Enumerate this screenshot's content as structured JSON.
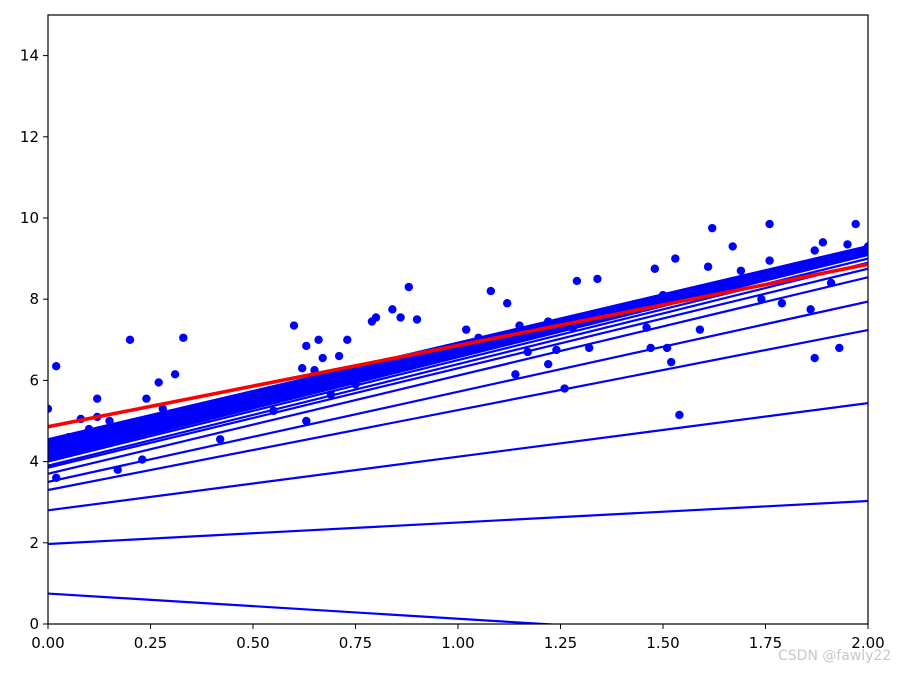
{
  "chart_data": {
    "type": "scatter",
    "xlim": [
      0,
      2
    ],
    "ylim": [
      0,
      15
    ],
    "xticks": [
      0,
      0.25,
      0.5,
      0.75,
      1.0,
      1.25,
      1.5,
      1.75,
      2.0
    ],
    "xtick_labels": [
      "0.00",
      "0.25",
      "0.50",
      "0.75",
      "1.00",
      "1.25",
      "1.50",
      "1.75",
      "2.00"
    ],
    "yticks": [
      0,
      2,
      4,
      6,
      8,
      10,
      12,
      14
    ],
    "ytick_labels": [
      "0",
      "2",
      "4",
      "6",
      "8",
      "10",
      "12",
      "14"
    ],
    "grid": false,
    "colors": {
      "points": "#0000ff",
      "lines": "#0000ff",
      "final_line": "#ff0000"
    },
    "points": [
      [
        0.0,
        5.3
      ],
      [
        0.02,
        6.35
      ],
      [
        0.02,
        3.6
      ],
      [
        0.05,
        4.6
      ],
      [
        0.07,
        4.3
      ],
      [
        0.08,
        5.05
      ],
      [
        0.1,
        4.8
      ],
      [
        0.12,
        5.55
      ],
      [
        0.12,
        5.1
      ],
      [
        0.15,
        5.0
      ],
      [
        0.17,
        3.8
      ],
      [
        0.18,
        4.9
      ],
      [
        0.2,
        7.0
      ],
      [
        0.22,
        4.7
      ],
      [
        0.23,
        4.05
      ],
      [
        0.24,
        5.55
      ],
      [
        0.27,
        5.95
      ],
      [
        0.28,
        5.3
      ],
      [
        0.31,
        6.15
      ],
      [
        0.33,
        7.05
      ],
      [
        0.42,
        4.55
      ],
      [
        0.45,
        5.35
      ],
      [
        0.55,
        5.25
      ],
      [
        0.6,
        7.35
      ],
      [
        0.62,
        6.3
      ],
      [
        0.63,
        6.85
      ],
      [
        0.63,
        5.0
      ],
      [
        0.65,
        6.25
      ],
      [
        0.66,
        7.0
      ],
      [
        0.67,
        6.55
      ],
      [
        0.69,
        5.65
      ],
      [
        0.71,
        6.6
      ],
      [
        0.73,
        7.0
      ],
      [
        0.75,
        5.9
      ],
      [
        0.79,
        7.45
      ],
      [
        0.8,
        7.55
      ],
      [
        0.84,
        7.75
      ],
      [
        0.86,
        7.55
      ],
      [
        0.88,
        8.3
      ],
      [
        0.9,
        7.5
      ],
      [
        1.02,
        7.25
      ],
      [
        1.05,
        7.05
      ],
      [
        1.08,
        8.2
      ],
      [
        1.12,
        7.9
      ],
      [
        1.14,
        6.15
      ],
      [
        1.15,
        7.35
      ],
      [
        1.17,
        6.7
      ],
      [
        1.22,
        7.45
      ],
      [
        1.22,
        6.4
      ],
      [
        1.24,
        6.75
      ],
      [
        1.26,
        5.8
      ],
      [
        1.28,
        7.3
      ],
      [
        1.29,
        8.45
      ],
      [
        1.32,
        6.8
      ],
      [
        1.34,
        8.5
      ],
      [
        1.38,
        7.6
      ],
      [
        1.46,
        7.3
      ],
      [
        1.47,
        6.8
      ],
      [
        1.48,
        8.75
      ],
      [
        1.5,
        8.1
      ],
      [
        1.51,
        6.8
      ],
      [
        1.52,
        6.45
      ],
      [
        1.53,
        9.0
      ],
      [
        1.54,
        5.15
      ],
      [
        1.59,
        7.25
      ],
      [
        1.61,
        8.8
      ],
      [
        1.62,
        9.75
      ],
      [
        1.67,
        9.3
      ],
      [
        1.69,
        8.7
      ],
      [
        1.74,
        8.0
      ],
      [
        1.76,
        9.85
      ],
      [
        1.76,
        8.95
      ],
      [
        1.79,
        7.9
      ],
      [
        1.86,
        7.75
      ],
      [
        1.87,
        9.2
      ],
      [
        1.87,
        6.55
      ],
      [
        1.89,
        9.4
      ],
      [
        1.91,
        8.4
      ],
      [
        1.93,
        6.8
      ],
      [
        1.95,
        9.35
      ],
      [
        1.97,
        9.85
      ],
      [
        2.0,
        9.3
      ]
    ],
    "lines": [
      {
        "intercept": 0.75,
        "slope": -0.62
      },
      {
        "intercept": 1.97,
        "slope": 0.53
      },
      {
        "intercept": 2.8,
        "slope": 1.32
      },
      {
        "intercept": 3.3,
        "slope": 1.97
      },
      {
        "intercept": 3.5,
        "slope": 2.22
      },
      {
        "intercept": 3.7,
        "slope": 2.42
      },
      {
        "intercept": 3.85,
        "slope": 2.45
      },
      {
        "intercept": 3.9,
        "slope": 2.5
      },
      {
        "intercept": 4.0,
        "slope": 2.5
      },
      {
        "intercept": 4.05,
        "slope": 2.52
      },
      {
        "intercept": 4.1,
        "slope": 2.5
      },
      {
        "intercept": 4.15,
        "slope": 2.48
      },
      {
        "intercept": 4.2,
        "slope": 2.46
      },
      {
        "intercept": 4.22,
        "slope": 2.45
      },
      {
        "intercept": 4.25,
        "slope": 2.45
      },
      {
        "intercept": 4.28,
        "slope": 2.44
      },
      {
        "intercept": 4.3,
        "slope": 2.44
      },
      {
        "intercept": 4.33,
        "slope": 2.43
      },
      {
        "intercept": 4.35,
        "slope": 2.43
      },
      {
        "intercept": 4.38,
        "slope": 2.42
      },
      {
        "intercept": 4.4,
        "slope": 2.42
      },
      {
        "intercept": 4.43,
        "slope": 2.41
      },
      {
        "intercept": 4.45,
        "slope": 2.41
      },
      {
        "intercept": 4.48,
        "slope": 2.4
      },
      {
        "intercept": 4.5,
        "slope": 2.4
      },
      {
        "intercept": 4.52,
        "slope": 2.39
      },
      {
        "intercept": 4.55,
        "slope": 2.38
      }
    ],
    "final_line": {
      "intercept": 4.86,
      "slope": 2.0
    }
  },
  "watermark": "CSDN @fawly22"
}
